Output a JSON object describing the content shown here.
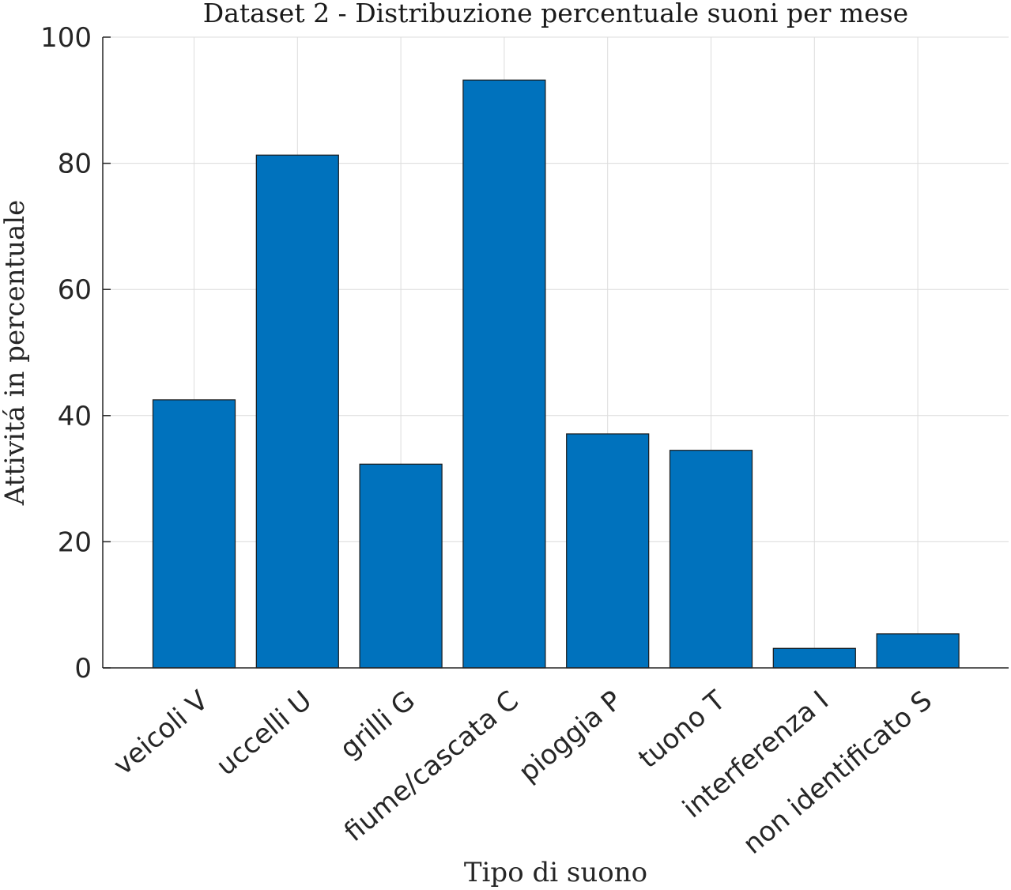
{
  "chart_data": {
    "type": "bar",
    "title": "Dataset 2 - Distribuzione percentuale suoni per mese",
    "xlabel": "Tipo di suono",
    "ylabel": "Attivitá in percentuale",
    "categories": [
      "veicoli V",
      "uccelli U",
      "grilli G",
      "fiume/cascata C",
      "pioggia P",
      "tuono T",
      "interferenza I",
      "non identificato S"
    ],
    "values": [
      42.5,
      81.3,
      32.3,
      93.2,
      37.1,
      34.5,
      3.1,
      5.4
    ],
    "ylim": [
      0,
      100
    ],
    "yticks": [
      0,
      20,
      40,
      60,
      80,
      100
    ],
    "grid": true,
    "bar_color": "#0072BD"
  }
}
